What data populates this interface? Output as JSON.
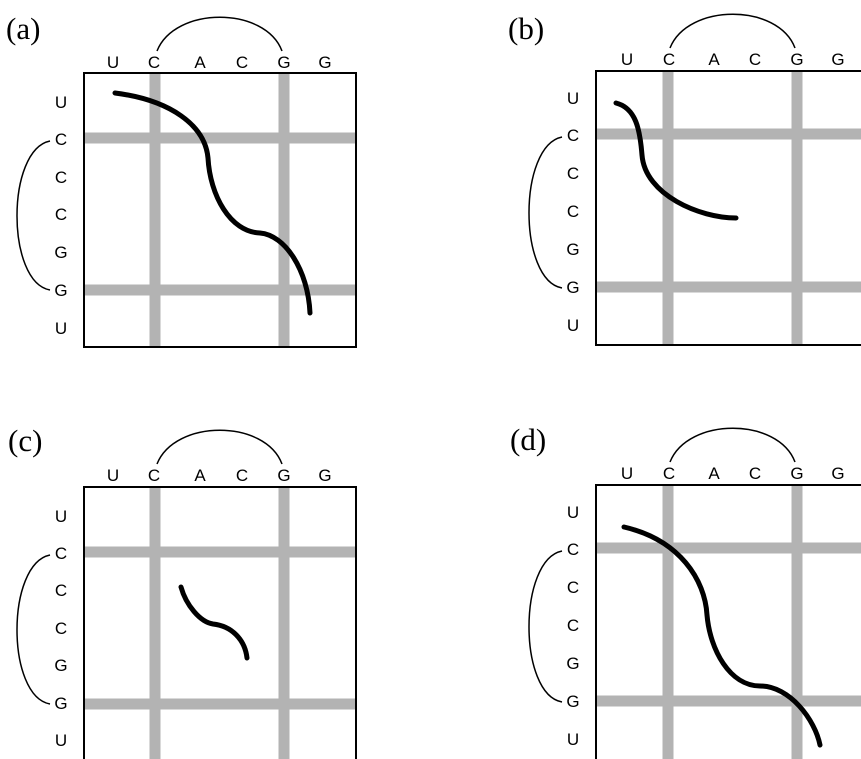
{
  "top_sequence": [
    "U",
    "C",
    "A",
    "C",
    "G",
    "G"
  ],
  "left_sequence": [
    "U",
    "C",
    "C",
    "C",
    "G",
    "G",
    "U"
  ],
  "panels": [
    {
      "label": "(a)"
    },
    {
      "label": "(b)"
    },
    {
      "label": "(c)"
    },
    {
      "label": "(d)"
    }
  ],
  "colors": {
    "band": "#b3b3b3",
    "path": "#000000",
    "frame": "#000000"
  }
}
